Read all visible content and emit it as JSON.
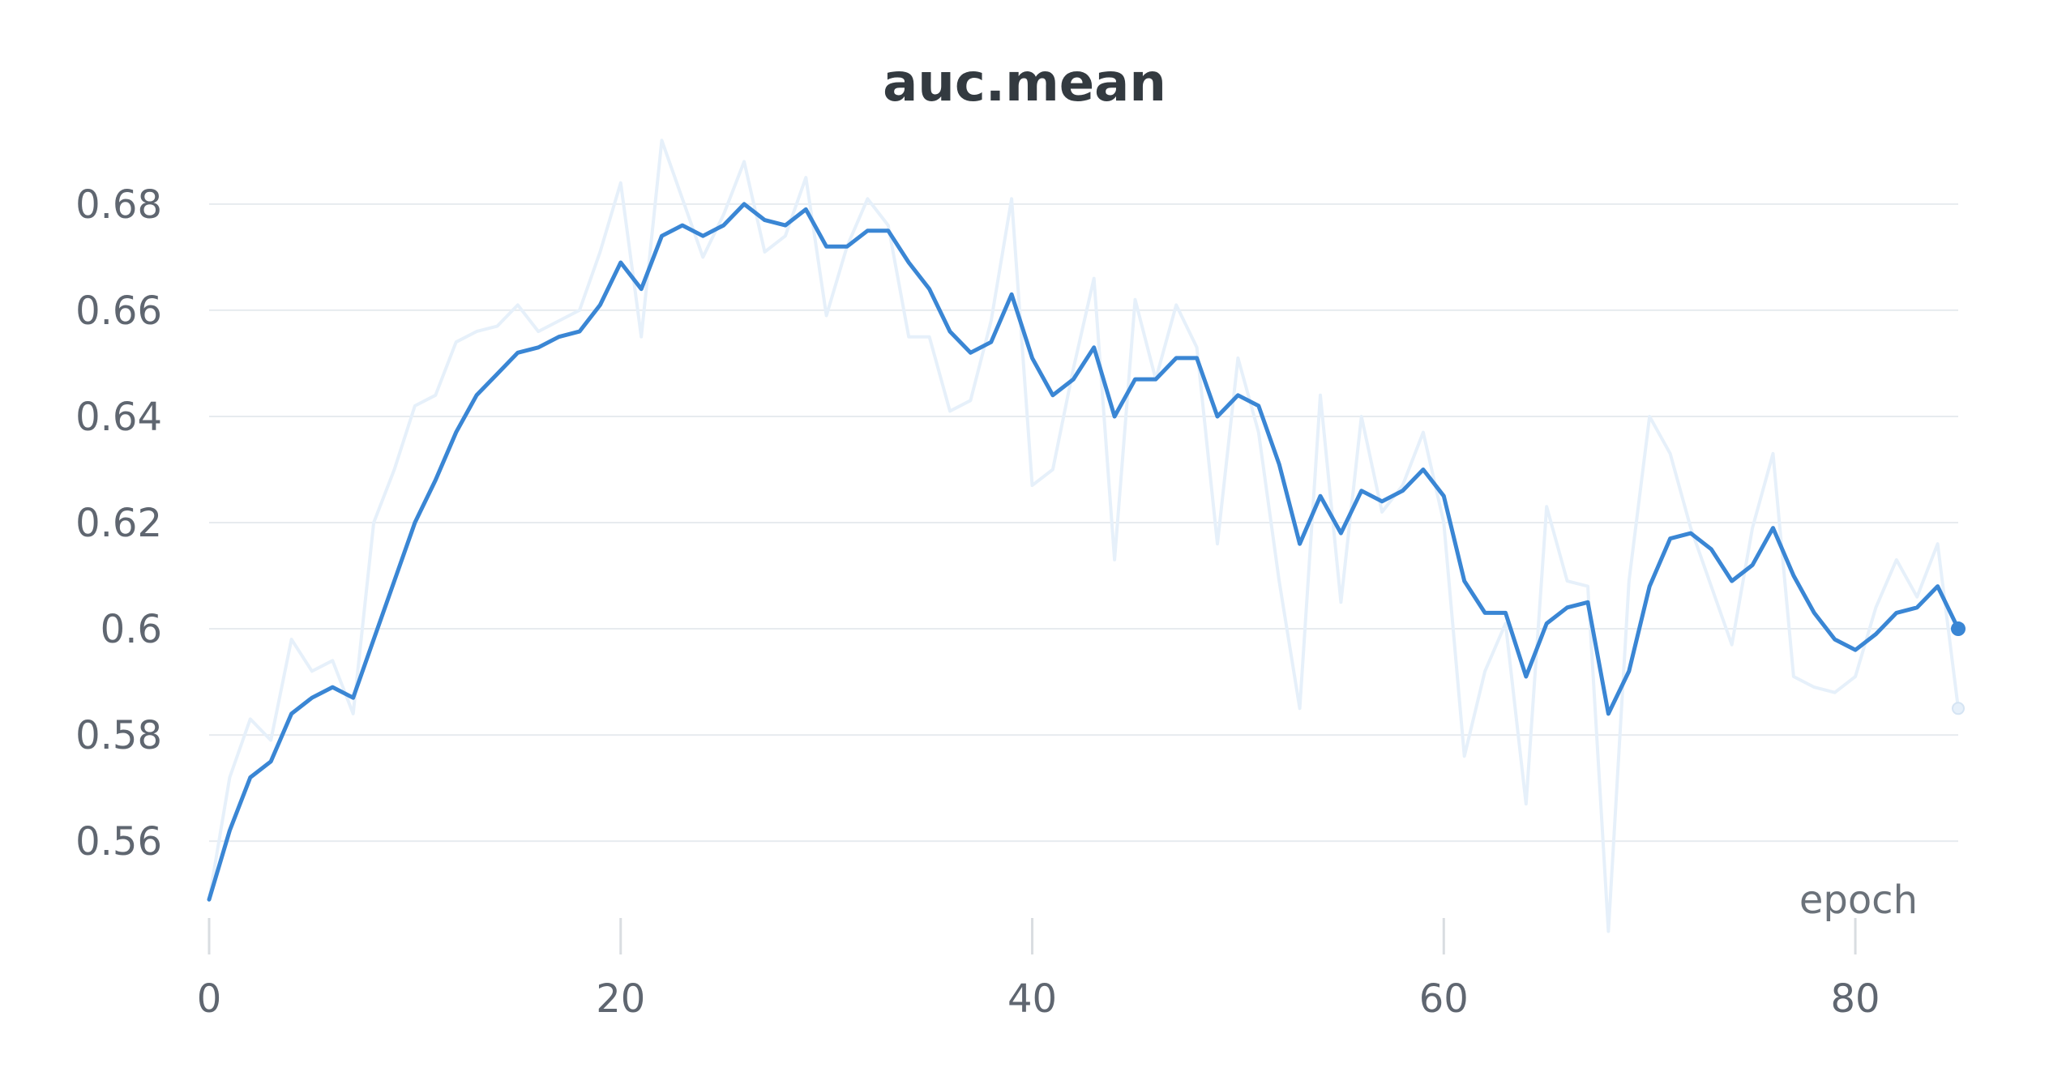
{
  "chart_data": {
    "type": "line",
    "title": "auc.mean",
    "xlabel": "epoch",
    "ylabel": "",
    "xlim": [
      0,
      85
    ],
    "ylim": [
      0.5475,
      0.6925
    ],
    "x_ticks": [
      0,
      20,
      40,
      60,
      80
    ],
    "x_tick_labels": [
      "0",
      "20",
      "40",
      "60",
      "80"
    ],
    "y_ticks": [
      0.56,
      0.58,
      0.6,
      0.62,
      0.64,
      0.66,
      0.68
    ],
    "y_tick_labels": [
      "0.56",
      "0.58",
      "0.6",
      "0.62",
      "0.64",
      "0.66",
      "0.68"
    ],
    "grid": "horizontal",
    "legend": "none",
    "x": [
      0,
      1,
      2,
      3,
      4,
      5,
      6,
      7,
      8,
      9,
      10,
      11,
      12,
      13,
      14,
      15,
      16,
      17,
      18,
      19,
      20,
      21,
      22,
      23,
      24,
      25,
      26,
      27,
      28,
      29,
      30,
      31,
      32,
      33,
      34,
      35,
      36,
      37,
      38,
      39,
      40,
      41,
      42,
      43,
      44,
      45,
      46,
      47,
      48,
      49,
      50,
      51,
      52,
      53,
      54,
      55,
      56,
      57,
      58,
      59,
      60,
      61,
      62,
      63,
      64,
      65,
      66,
      67,
      68,
      69,
      70,
      71,
      72,
      73,
      74,
      75,
      76,
      77,
      78,
      79,
      80,
      81,
      82,
      83,
      84,
      85
    ],
    "series": [
      {
        "role": "raw",
        "color": "#e6f0fa",
        "values": [
          0.549,
          0.572,
          0.583,
          0.579,
          0.598,
          0.592,
          0.594,
          0.584,
          0.62,
          0.63,
          0.642,
          0.644,
          0.654,
          0.656,
          0.657,
          0.661,
          0.656,
          0.658,
          0.66,
          0.671,
          0.684,
          0.655,
          0.692,
          0.681,
          0.67,
          0.678,
          0.688,
          0.671,
          0.674,
          0.685,
          0.659,
          0.672,
          0.681,
          0.676,
          0.655,
          0.655,
          0.641,
          0.643,
          0.658,
          0.681,
          0.627,
          0.63,
          0.649,
          0.666,
          0.613,
          0.662,
          0.647,
          0.661,
          0.653,
          0.616,
          0.651,
          0.637,
          0.609,
          0.585,
          0.644,
          0.605,
          0.64,
          0.622,
          0.627,
          0.637,
          0.62,
          0.576,
          0.592,
          0.601,
          0.567,
          0.623,
          0.609,
          0.608,
          0.543,
          0.609,
          0.64,
          0.633,
          0.619,
          0.608,
          0.597,
          0.619,
          0.633,
          0.591,
          0.589,
          0.588,
          0.591,
          0.604,
          0.613,
          0.606,
          0.616,
          0.585
        ]
      },
      {
        "role": "smoothed",
        "color": "#3a86d4",
        "values": [
          0.549,
          0.562,
          0.572,
          0.575,
          0.584,
          0.587,
          0.589,
          0.587,
          0.598,
          0.609,
          0.62,
          0.628,
          0.637,
          0.644,
          0.648,
          0.652,
          0.653,
          0.655,
          0.656,
          0.661,
          0.669,
          0.664,
          0.674,
          0.676,
          0.674,
          0.676,
          0.68,
          0.677,
          0.676,
          0.679,
          0.672,
          0.672,
          0.675,
          0.675,
          0.669,
          0.664,
          0.656,
          0.652,
          0.654,
          0.663,
          0.651,
          0.644,
          0.647,
          0.653,
          0.64,
          0.647,
          0.647,
          0.651,
          0.651,
          0.64,
          0.644,
          0.642,
          0.631,
          0.616,
          0.625,
          0.618,
          0.626,
          0.624,
          0.626,
          0.63,
          0.625,
          0.609,
          0.603,
          0.603,
          0.591,
          0.601,
          0.604,
          0.605,
          0.584,
          0.592,
          0.608,
          0.617,
          0.618,
          0.615,
          0.609,
          0.612,
          0.619,
          0.61,
          0.603,
          0.598,
          0.596,
          0.599,
          0.603,
          0.604,
          0.608,
          0.6
        ]
      }
    ]
  }
}
